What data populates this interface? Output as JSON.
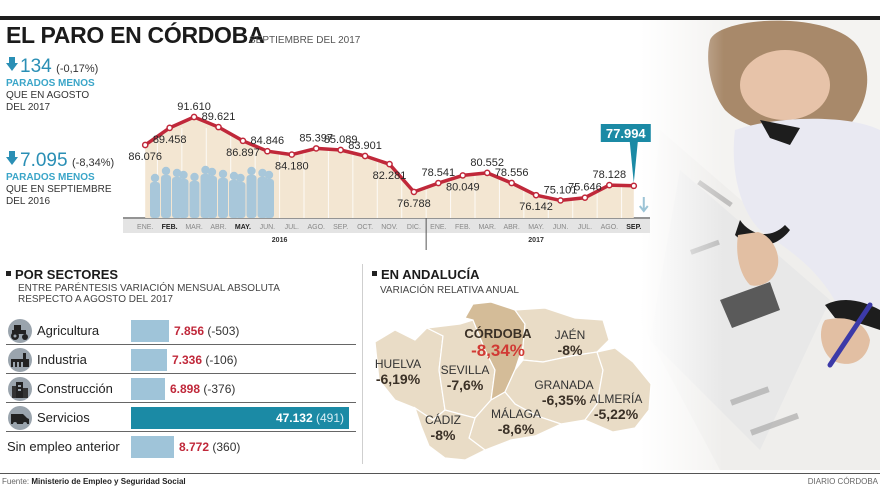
{
  "header": {
    "title": "EL PARO EN CÓRDOBA",
    "subtitle": "SEPTIEMBRE DEL 2017"
  },
  "stats": [
    {
      "value": "134",
      "pct": "(-0,17%)",
      "label_strong": "PARADOS MENOS",
      "label_line1": "QUE EN AGOSTO",
      "label_line2": "DEL 2017",
      "icon": "arrow-down-icon"
    },
    {
      "value": "7.095",
      "pct": "(-8,34%)",
      "label_strong": "PARADOS MENOS",
      "label_line1": "QUE EN SEPTIEMBRE",
      "label_line2": "DEL 2016",
      "icon": "arrow-down-icon"
    }
  ],
  "chart_data": [
    {
      "type": "line",
      "title": "EL PARO EN CÓRDOBA",
      "xlabel": "",
      "ylabel": "",
      "ylim": [
        74000,
        93000
      ],
      "grid": true,
      "categories": [
        "ENE.",
        "FEB.",
        "MAR.",
        "ABR.",
        "MAY.",
        "JUN.",
        "JUL.",
        "AGO.",
        "SEP.",
        "OCT.",
        "NOV.",
        "DIC.",
        "ENE.",
        "FEB.",
        "MAR.",
        "ABR.",
        "MAY.",
        "JUN.",
        "JUL.",
        "AGO.",
        "SEP."
      ],
      "bold_categories": [
        1,
        4,
        20
      ],
      "years": [
        {
          "label": "2016",
          "from": 0,
          "to": 11
        },
        {
          "label": "2017",
          "from": 12,
          "to": 20
        }
      ],
      "series": [
        {
          "name": "Parados",
          "values": [
            86076,
            89458,
            91610,
            89621,
            86897,
            84846,
            84180,
            85397,
            85089,
            83901,
            82281,
            76788,
            78541,
            80049,
            80552,
            78556,
            76142,
            75101,
            75646,
            78128,
            77994
          ],
          "labels": [
            "86.076",
            "89.458",
            "91.610",
            "89.621",
            "86.897",
            "84.846",
            "84.180",
            "85.397",
            "85.089",
            "83.901",
            "82.281",
            "76.788",
            "78.541",
            "80.049",
            "80.552",
            "78.556",
            "76.142",
            "75.101",
            "75.646",
            "78.128",
            "77.994"
          ],
          "label_pos": [
            "below",
            "below",
            "above",
            "above",
            "below",
            "above",
            "below",
            "above",
            "above",
            "above",
            "below",
            "below",
            "above",
            "below",
            "above",
            "above",
            "below",
            "above",
            "above",
            "above",
            "callout"
          ]
        }
      ],
      "highlight": {
        "index": 20,
        "label": "77.994",
        "color": "#1b8aa5"
      },
      "colors": {
        "line": "#c0283a",
        "fill": "#f3e6d2",
        "axis_band": "#e4e4e4",
        "figures": "#a8c7da"
      }
    },
    {
      "type": "bar",
      "title": "POR SECTORES",
      "subtitle": "ENTRE PARÉNTESIS VARIACIÓN MENSUAL ABSOLUTA RESPECTO A AGOSTO DEL 2017",
      "categories": [
        "Agricultura",
        "Industria",
        "Construcción",
        "Servicios",
        "Sin empleo anterior"
      ],
      "values": [
        7856,
        7336,
        6898,
        47132,
        8772
      ],
      "value_labels": [
        "7.856",
        "7.336",
        "6.898",
        "47.132",
        "8.772"
      ],
      "changes": [
        "(-503)",
        "(-106)",
        "(-376)",
        "(491)",
        "(360)"
      ],
      "highlight_index": 3
    }
  ],
  "sectors": {
    "title": "POR SECTORES",
    "subtitle_line1": "ENTRE PARÉNTESIS VARIACIÓN MENSUAL ABSOLUTA",
    "subtitle_line2": "RESPECTO A AGOSTO DEL 2017",
    "icons": [
      "tractor-icon",
      "factory-icon",
      "crane-icon",
      "van-icon",
      ""
    ]
  },
  "andalucia": {
    "title": "EN ANDALUCÍA",
    "subtitle": "VARIACIÓN RELATIVA ANUAL",
    "provinces": [
      {
        "name": "CÓRDOBA",
        "value": "-8,34%",
        "highlight": true
      },
      {
        "name": "JAÉN",
        "value": "-8%"
      },
      {
        "name": "HUELVA",
        "value": "-6,19%"
      },
      {
        "name": "SEVILLA",
        "value": "-7,6%"
      },
      {
        "name": "GRANADA",
        "value": "-6,35%"
      },
      {
        "name": "ALMERÍA",
        "value": "-5,22%"
      },
      {
        "name": "CÁDIZ",
        "value": "-8%"
      },
      {
        "name": "MÁLAGA",
        "value": "-8,6%"
      }
    ],
    "colors": {
      "map": "#e9dcc6",
      "highlight": "#d4bc98",
      "border": "#ffffff"
    }
  },
  "footer": {
    "source_label": "Fuente:",
    "source": "Ministerio de Empleo y Seguridad Social",
    "credit": "DIARIO CÓRDOBA"
  }
}
